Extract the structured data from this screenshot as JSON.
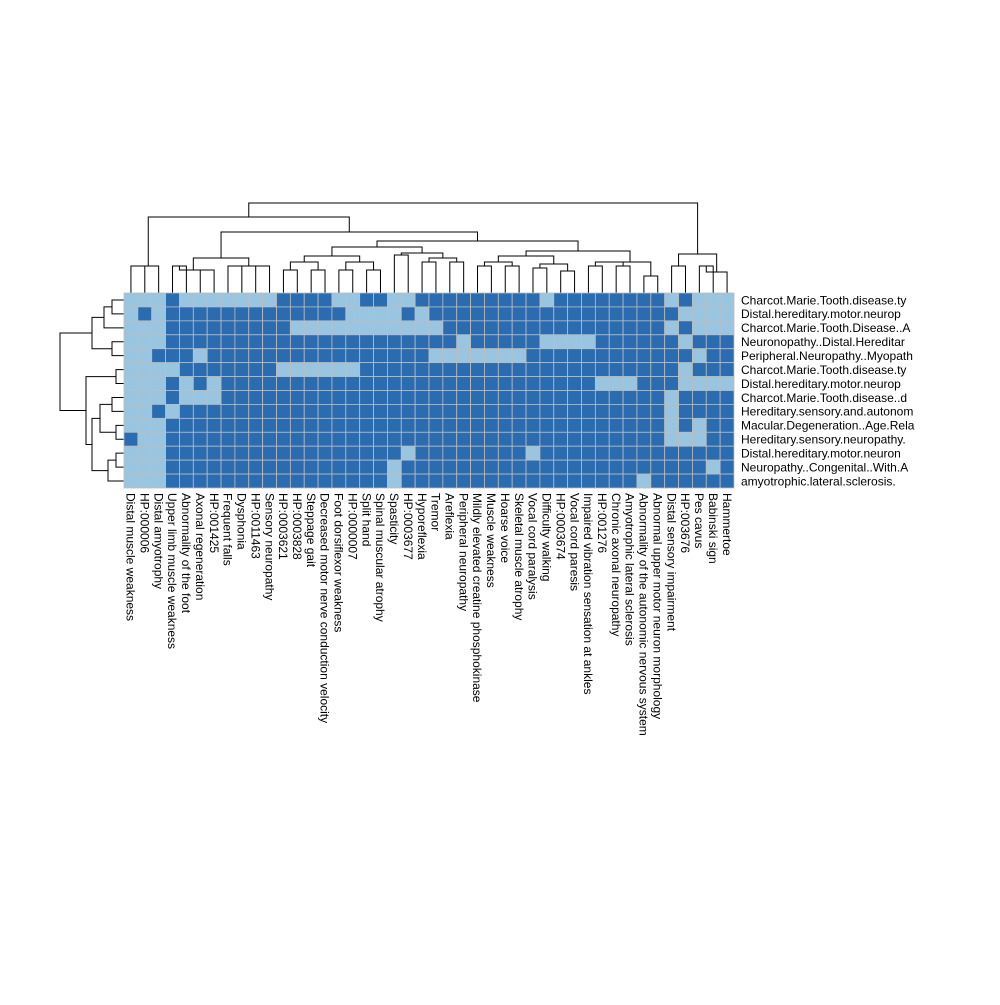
{
  "colors": {
    "high": "#2b6cb0",
    "low": "#9ac5e0",
    "grid": "#bdbdbd",
    "dendrogram": "#000000"
  },
  "chart_data": {
    "type": "heatmap",
    "title": "",
    "xlabel": "",
    "ylabel": "",
    "legend": "none",
    "value_scale": "binary (0 = light blue, 1 = dark blue)",
    "columns": [
      "Distal muscle weakness",
      "HP:000006",
      "Distal amyotrophy",
      "Upper limb muscle weakness",
      "Abnormality of the foot",
      "Axonal regeneration",
      "HP:001425",
      "Frequent falls",
      "Dysphonia",
      "HP:0011463",
      "Sensory neuropathy",
      "HP:0003621",
      "HP:0003828",
      "Steppage gait",
      "Decreased motor nerve conduction velocity",
      "Foot dorsiflexor weakness",
      "HP:0000007",
      "Split hand",
      "Spinal muscular atrophy",
      "Spasticity",
      "HP:0003677",
      "Hyporeflexia",
      "Tremor",
      "Areflexia",
      "Peripheral neuropathy",
      "Mildly elevated creatine phosphokinase",
      "Muscle weakness",
      "Hoarse voice",
      "Skeletal muscle atrophy",
      "Vocal cord paralysis",
      "Difficulty walking",
      "HP:0003674",
      "Vocal cord paresis",
      "Impaired vibration sensation at ankles",
      "HP:001276",
      "Chronic axonal neuropathy",
      "Amyotrophic lateral sclerosis",
      "Abnormality of the autonomic nervous system",
      "Abnormal upper motor neuron morphology",
      "Distal sensory impairment",
      "HP:003676",
      "Pes cavus",
      "Babinski sign",
      "Hammertoe"
    ],
    "rows": [
      "Charcot.Marie.Tooth.disease.ty",
      "Distal.hereditary.motor.neurop",
      "Charcot.Marie.Tooth.Disease..A",
      "Neuronopathy..Distal.Hereditar",
      "Peripheral.Neuropathy..Myopath",
      "Charcot.Marie.Tooth.disease.ty",
      "Distal.hereditary.motor.neurop",
      "Charcot.Marie.Tooth.disease..d",
      "Hereditary.sensory.and.autonom",
      "Macular.Degeneration..Age.Rela",
      "Hereditary.sensory.neuropathy.",
      "Distal.hereditary.motor.neuron",
      "Neuropathy..Congenital..With.A",
      "amyotrophic.lateral.sclerosis."
    ],
    "values": [
      [
        0,
        0,
        0,
        1,
        0,
        0,
        0,
        0,
        0,
        0,
        0,
        1,
        1,
        1,
        1,
        0,
        0,
        1,
        1,
        0,
        0,
        1,
        1,
        1,
        1,
        1,
        1,
        1,
        1,
        1,
        0,
        1,
        1,
        1,
        1,
        1,
        1,
        1,
        1,
        0,
        1,
        0,
        0,
        0
      ],
      [
        0,
        1,
        0,
        1,
        1,
        1,
        1,
        1,
        1,
        1,
        1,
        1,
        1,
        1,
        1,
        1,
        0,
        0,
        0,
        0,
        1,
        0,
        1,
        1,
        1,
        1,
        1,
        1,
        1,
        1,
        1,
        1,
        1,
        1,
        1,
        1,
        1,
        1,
        1,
        1,
        0,
        0,
        0,
        0
      ],
      [
        0,
        0,
        0,
        1,
        1,
        1,
        1,
        1,
        1,
        1,
        1,
        1,
        0,
        0,
        0,
        0,
        0,
        0,
        0,
        0,
        0,
        0,
        0,
        1,
        1,
        1,
        1,
        1,
        1,
        1,
        1,
        1,
        1,
        1,
        1,
        1,
        1,
        1,
        1,
        0,
        1,
        0,
        0,
        0
      ],
      [
        0,
        0,
        0,
        1,
        1,
        1,
        1,
        1,
        1,
        1,
        1,
        1,
        1,
        1,
        1,
        1,
        1,
        1,
        1,
        1,
        1,
        1,
        1,
        1,
        0,
        1,
        1,
        1,
        1,
        1,
        0,
        0,
        0,
        0,
        1,
        1,
        1,
        1,
        1,
        1,
        0,
        1,
        1,
        1
      ],
      [
        0,
        0,
        1,
        1,
        1,
        0,
        1,
        1,
        1,
        1,
        1,
        1,
        1,
        1,
        1,
        1,
        1,
        1,
        1,
        1,
        1,
        1,
        0,
        0,
        0,
        0,
        0,
        0,
        0,
        1,
        1,
        1,
        1,
        1,
        1,
        1,
        1,
        1,
        1,
        1,
        1,
        0,
        1,
        1
      ],
      [
        0,
        0,
        0,
        0,
        1,
        1,
        1,
        1,
        1,
        1,
        1,
        0,
        0,
        0,
        0,
        0,
        0,
        1,
        1,
        1,
        1,
        1,
        1,
        1,
        1,
        1,
        1,
        1,
        1,
        1,
        1,
        1,
        1,
        1,
        1,
        1,
        1,
        1,
        1,
        1,
        0,
        1,
        1,
        1
      ],
      [
        0,
        0,
        0,
        1,
        0,
        1,
        0,
        1,
        1,
        1,
        1,
        1,
        1,
        1,
        1,
        1,
        1,
        1,
        1,
        1,
        1,
        1,
        1,
        1,
        1,
        1,
        1,
        1,
        1,
        1,
        1,
        1,
        1,
        1,
        0,
        0,
        0,
        1,
        1,
        1,
        0,
        0,
        0,
        0
      ],
      [
        0,
        0,
        0,
        1,
        0,
        0,
        0,
        1,
        1,
        1,
        1,
        1,
        1,
        1,
        1,
        1,
        1,
        1,
        1,
        1,
        1,
        1,
        1,
        1,
        1,
        1,
        1,
        1,
        1,
        1,
        1,
        1,
        1,
        1,
        1,
        1,
        1,
        1,
        1,
        0,
        1,
        1,
        1,
        1
      ],
      [
        0,
        0,
        1,
        0,
        1,
        1,
        1,
        1,
        1,
        1,
        1,
        1,
        1,
        1,
        1,
        1,
        1,
        1,
        1,
        1,
        1,
        1,
        1,
        1,
        1,
        1,
        1,
        1,
        1,
        1,
        1,
        1,
        1,
        1,
        1,
        1,
        1,
        1,
        1,
        0,
        1,
        1,
        1,
        1
      ],
      [
        0,
        0,
        0,
        1,
        1,
        1,
        1,
        1,
        1,
        1,
        1,
        1,
        1,
        1,
        1,
        1,
        1,
        1,
        1,
        1,
        1,
        1,
        1,
        1,
        1,
        1,
        1,
        1,
        1,
        1,
        1,
        1,
        1,
        1,
        1,
        1,
        1,
        1,
        1,
        0,
        1,
        0,
        1,
        1
      ],
      [
        1,
        0,
        0,
        1,
        1,
        1,
        1,
        1,
        1,
        1,
        1,
        1,
        1,
        1,
        1,
        1,
        1,
        1,
        1,
        1,
        1,
        1,
        1,
        1,
        1,
        1,
        1,
        1,
        1,
        1,
        1,
        1,
        1,
        1,
        1,
        1,
        1,
        1,
        1,
        0,
        0,
        0,
        1,
        1
      ],
      [
        0,
        0,
        0,
        1,
        1,
        1,
        1,
        1,
        1,
        1,
        1,
        1,
        1,
        1,
        1,
        1,
        1,
        1,
        1,
        1,
        0,
        1,
        1,
        1,
        1,
        1,
        1,
        1,
        1,
        0,
        1,
        1,
        1,
        1,
        1,
        1,
        1,
        1,
        1,
        1,
        1,
        1,
        1,
        1
      ],
      [
        0,
        0,
        0,
        1,
        1,
        1,
        1,
        1,
        1,
        1,
        1,
        1,
        1,
        1,
        1,
        1,
        1,
        1,
        1,
        0,
        1,
        1,
        1,
        1,
        1,
        1,
        1,
        1,
        1,
        1,
        1,
        1,
        1,
        1,
        1,
        1,
        1,
        1,
        1,
        1,
        1,
        1,
        0,
        1
      ],
      [
        0,
        0,
        0,
        1,
        1,
        1,
        1,
        1,
        1,
        1,
        1,
        1,
        1,
        1,
        1,
        1,
        1,
        1,
        1,
        0,
        1,
        1,
        1,
        1,
        1,
        1,
        1,
        1,
        1,
        1,
        1,
        1,
        1,
        1,
        1,
        1,
        1,
        0,
        1,
        1,
        1,
        1,
        1,
        1
      ]
    ]
  }
}
